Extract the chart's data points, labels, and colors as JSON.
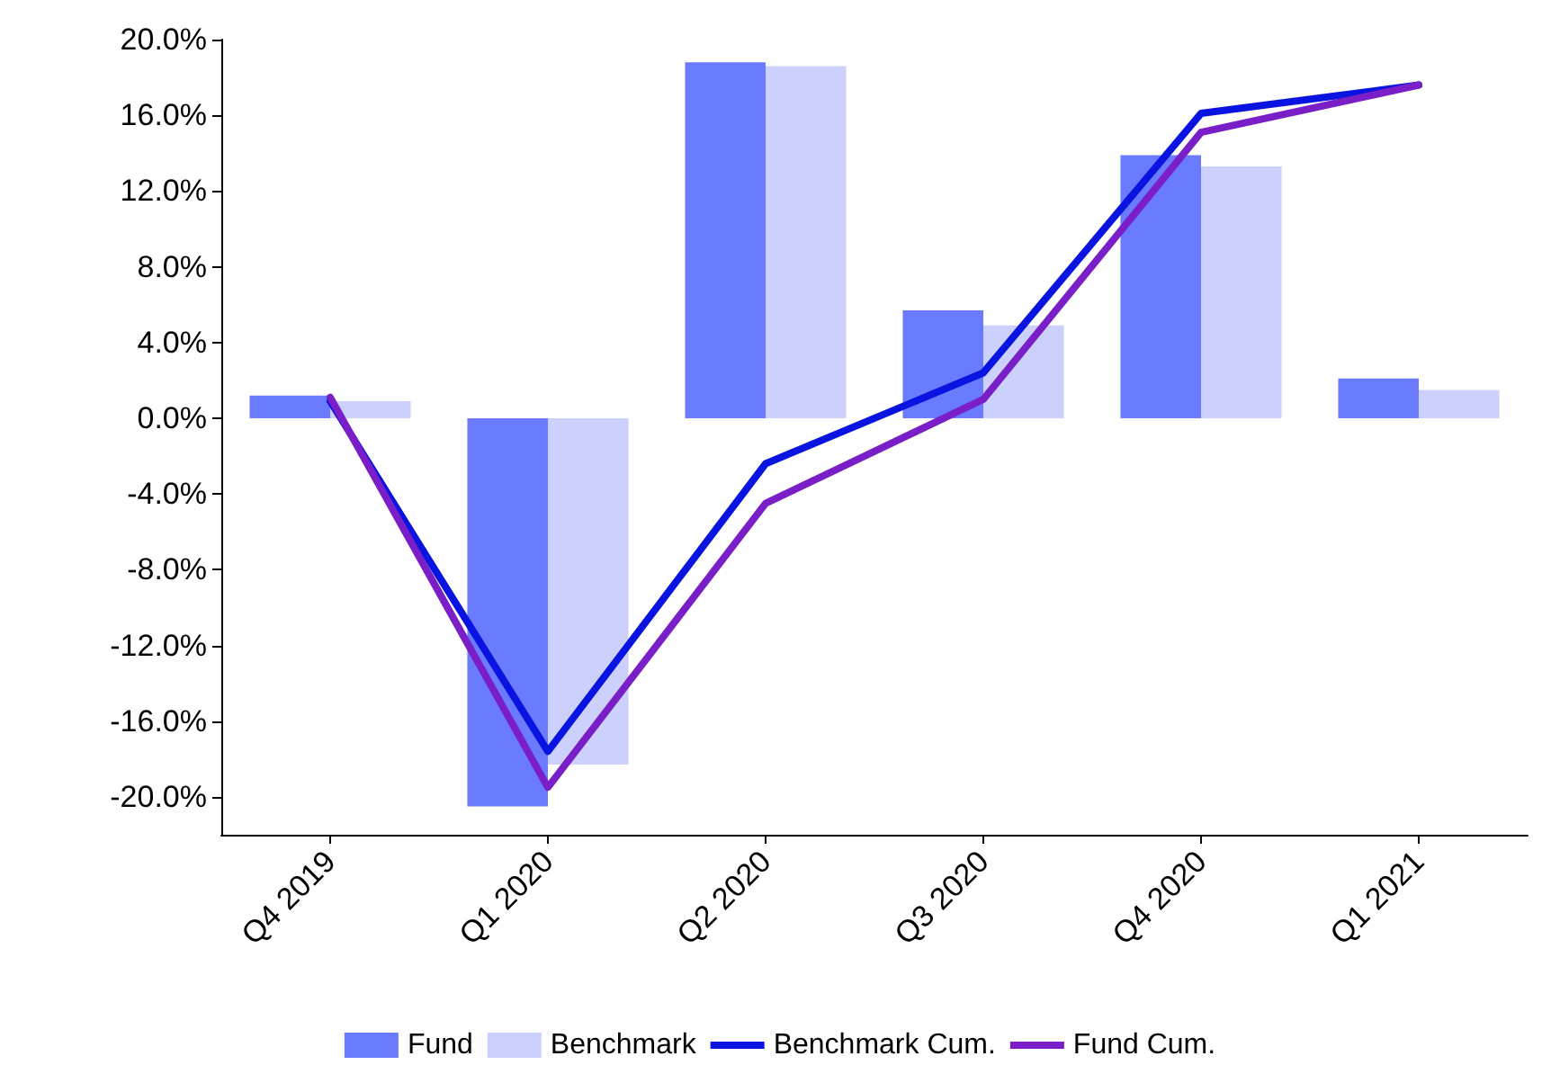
{
  "chart_data": {
    "type": "bar",
    "categories": [
      "Q4 2019",
      "Q1 2020",
      "Q2 2020",
      "Q3 2020",
      "Q4 2020",
      "Q1 2021"
    ],
    "series": [
      {
        "name": "Fund",
        "color": "#6b7bff",
        "values": [
          1.2,
          -20.5,
          18.8,
          5.7,
          13.9,
          2.1
        ]
      },
      {
        "name": "Benchmark",
        "color": "#ccd0fc",
        "values": [
          0.9,
          -18.3,
          18.6,
          4.9,
          13.3,
          1.5
        ]
      },
      {
        "name": "Benchmark Cum.",
        "type": "line",
        "color": "#0a14e0",
        "values": [
          0.9,
          -17.6,
          -2.4,
          2.4,
          16.1,
          17.6
        ]
      },
      {
        "name": "Fund Cum.",
        "type": "line",
        "color": "#7a1fc8",
        "values": [
          1.1,
          -19.5,
          -4.5,
          1.0,
          15.1,
          17.6
        ]
      }
    ],
    "ylim": [
      -22,
      20
    ],
    "yticks": [
      {
        "value": -20,
        "label": "-20.0%"
      },
      {
        "value": -16,
        "label": "-16.0%"
      },
      {
        "value": -12,
        "label": "-12.0%"
      },
      {
        "value": -8,
        "label": "-8.0%"
      },
      {
        "value": -4,
        "label": "-4.0%"
      },
      {
        "value": 0,
        "label": "0.0%"
      },
      {
        "value": 4,
        "label": "4.0%"
      },
      {
        "value": 8,
        "label": "8.0%"
      },
      {
        "value": 12,
        "label": "12.0%"
      },
      {
        "value": 16,
        "label": "16.0%"
      },
      {
        "value": 20,
        "label": "20.0%"
      }
    ],
    "grid": false,
    "legend": "bottom",
    "marker": "none",
    "line_style": "solid"
  }
}
